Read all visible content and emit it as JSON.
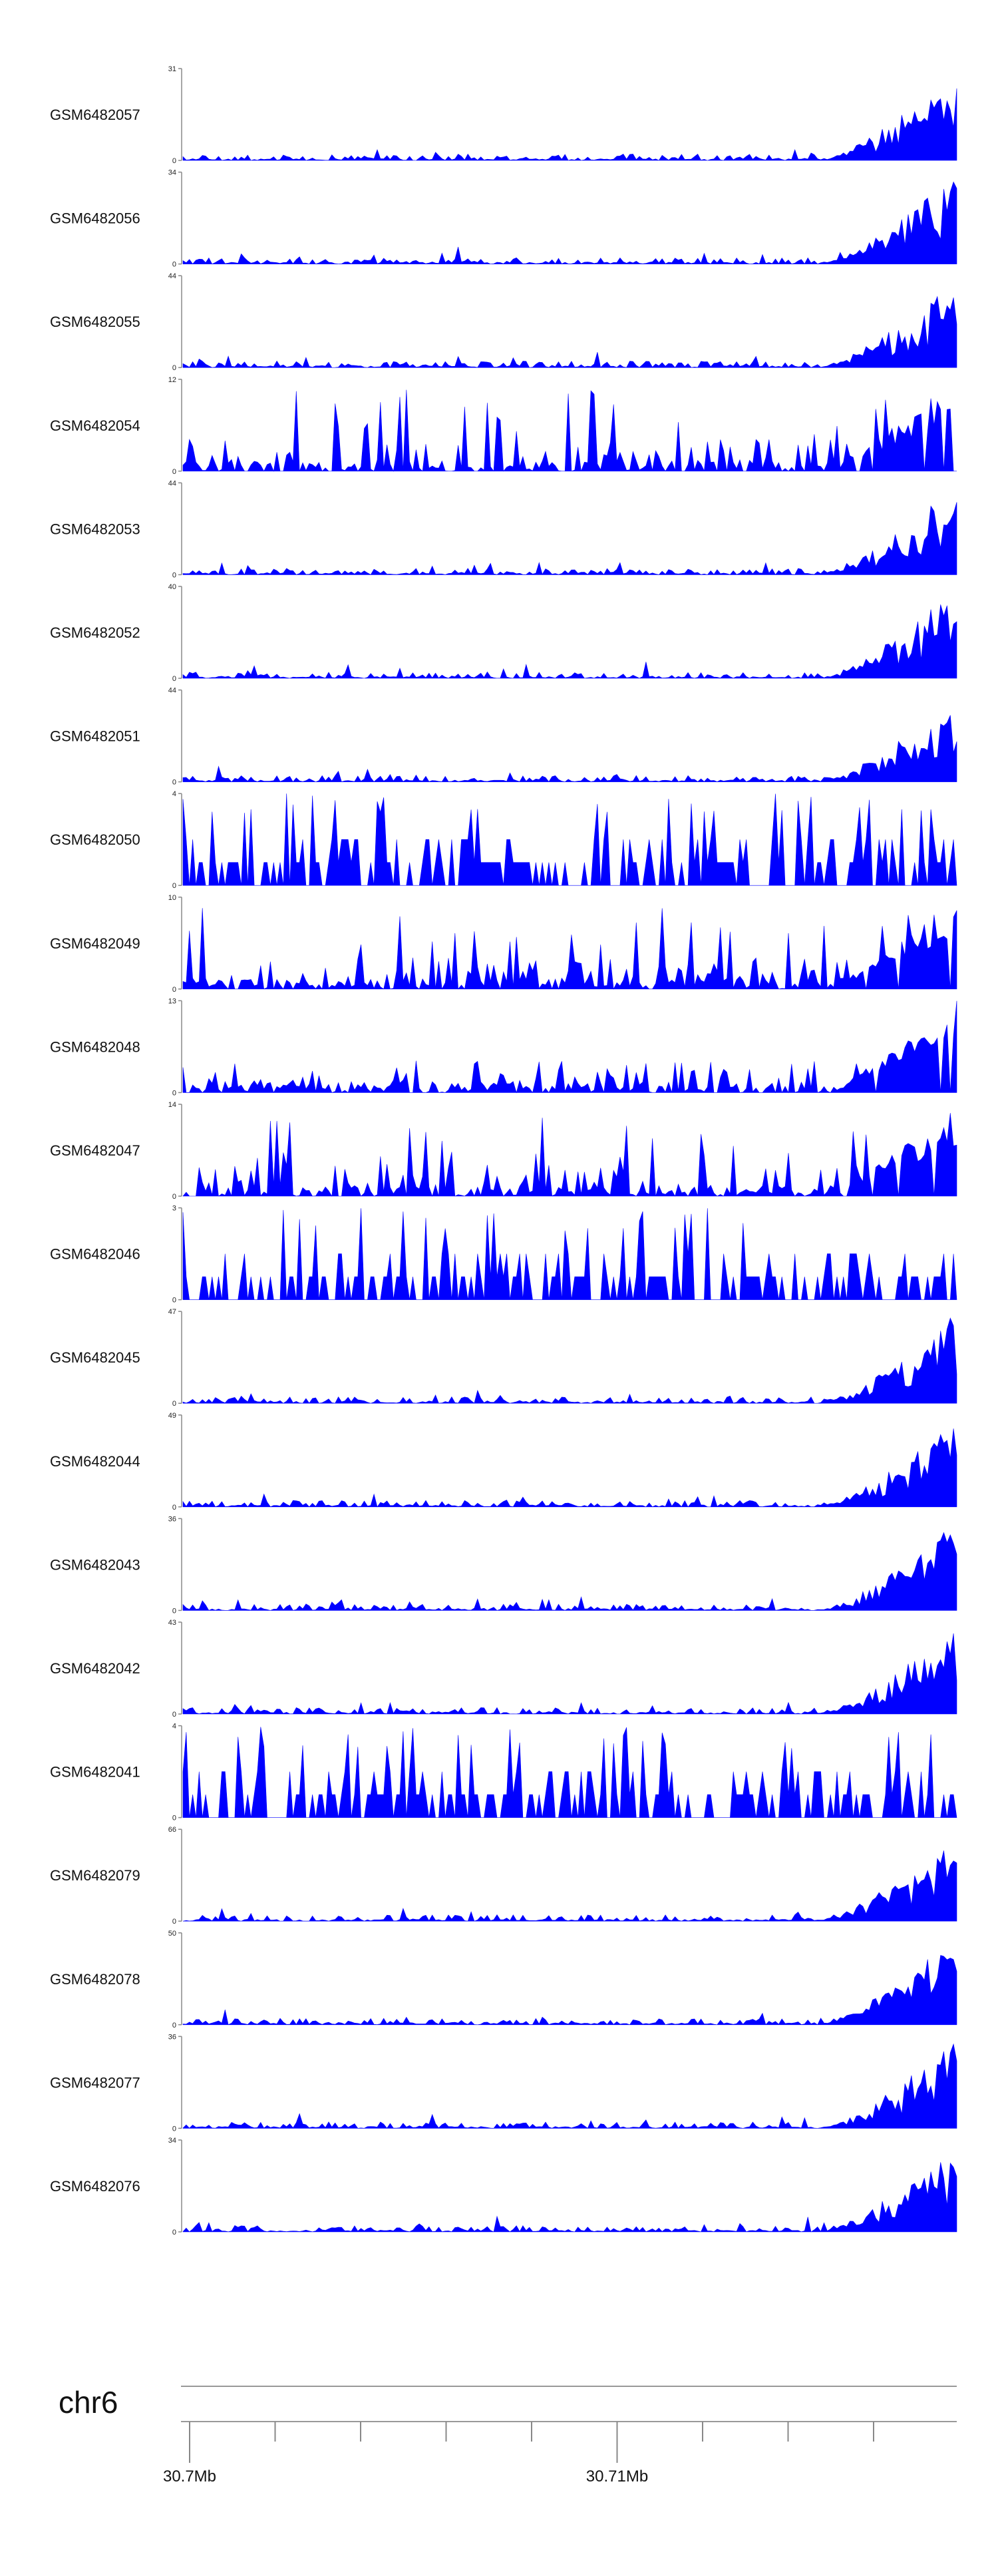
{
  "chart_data": {
    "type": "area",
    "color": "#0000ff",
    "axis_color": "#888888",
    "chromosome": "chr6",
    "genome_axis": {
      "ticks": [
        {
          "label": "30.7Mb",
          "labeled": true
        },
        {
          "label": "",
          "labeled": false
        },
        {
          "label": "",
          "labeled": false
        },
        {
          "label": "",
          "labeled": false
        },
        {
          "label": "",
          "labeled": false
        },
        {
          "label": "30.71Mb",
          "labeled": true
        },
        {
          "label": "",
          "labeled": false
        },
        {
          "label": "",
          "labeled": false
        },
        {
          "label": "",
          "labeled": false
        }
      ]
    },
    "tracks": [
      {
        "name": "GSM6482057",
        "ymin": 0,
        "ymax": 31,
        "shape": "smooth",
        "seed": 57
      },
      {
        "name": "GSM6482056",
        "ymin": 0,
        "ymax": 34,
        "shape": "smooth",
        "seed": 56
      },
      {
        "name": "GSM6482055",
        "ymin": 0,
        "ymax": 44,
        "shape": "smooth",
        "seed": 55
      },
      {
        "name": "GSM6482054",
        "ymin": 0,
        "ymax": 12,
        "shape": "spiky",
        "seed": 54
      },
      {
        "name": "GSM6482053",
        "ymin": 0,
        "ymax": 44,
        "shape": "smooth",
        "seed": 53
      },
      {
        "name": "GSM6482052",
        "ymin": 0,
        "ymax": 40,
        "shape": "smooth",
        "seed": 52
      },
      {
        "name": "GSM6482051",
        "ymin": 0,
        "ymax": 44,
        "shape": "smooth",
        "seed": 51
      },
      {
        "name": "GSM6482050",
        "ymin": 0,
        "ymax": 4,
        "shape": "sparse",
        "seed": 50
      },
      {
        "name": "GSM6482049",
        "ymin": 0,
        "ymax": 10,
        "shape": "spiky",
        "seed": 49
      },
      {
        "name": "GSM6482048",
        "ymin": 0,
        "ymax": 13,
        "shape": "medium",
        "seed": 48
      },
      {
        "name": "GSM6482047",
        "ymin": 0,
        "ymax": 14,
        "shape": "spiky",
        "seed": 47
      },
      {
        "name": "GSM6482046",
        "ymin": 0,
        "ymax": 3,
        "shape": "sparse",
        "seed": 46
      },
      {
        "name": "GSM6482045",
        "ymin": 0,
        "ymax": 47,
        "shape": "smooth",
        "seed": 45
      },
      {
        "name": "GSM6482044",
        "ymin": 0,
        "ymax": 49,
        "shape": "smooth",
        "seed": 44
      },
      {
        "name": "GSM6482043",
        "ymin": 0,
        "ymax": 36,
        "shape": "smooth",
        "seed": 43
      },
      {
        "name": "GSM6482042",
        "ymin": 0,
        "ymax": 43,
        "shape": "smooth",
        "seed": 42
      },
      {
        "name": "GSM6482041",
        "ymin": 0,
        "ymax": 4,
        "shape": "sparse",
        "seed": 41
      },
      {
        "name": "GSM6482079",
        "ymin": 0,
        "ymax": 66,
        "shape": "smooth",
        "seed": 79
      },
      {
        "name": "GSM6482078",
        "ymin": 0,
        "ymax": 50,
        "shape": "smooth",
        "seed": 78
      },
      {
        "name": "GSM6482077",
        "ymin": 0,
        "ymax": 36,
        "shape": "smooth",
        "seed": 77
      },
      {
        "name": "GSM6482076",
        "ymin": 0,
        "ymax": 34,
        "shape": "smooth",
        "seed": 76
      }
    ]
  }
}
